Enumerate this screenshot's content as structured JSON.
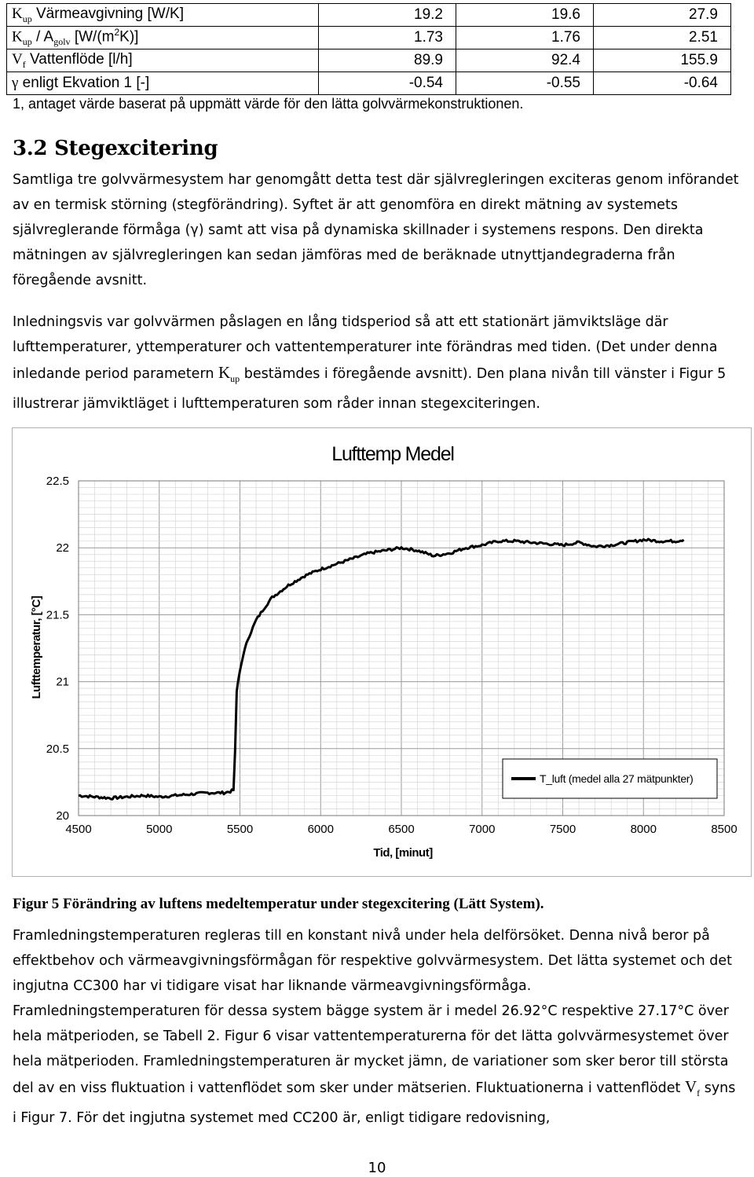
{
  "table": {
    "rows": [
      {
        "label_main": "K",
        "label_sub": "up",
        "label_rest": " Värmeavgivning [W/K]",
        "v1": "19.2",
        "v2": "19.6",
        "v3": "27.9"
      },
      {
        "label_main": "K",
        "label_sub": "up",
        "label_mid": " / A",
        "label_sub2": "golv",
        "label_rest": " [W/(m",
        "label_sup": "2",
        "label_end": "K)]",
        "v1": "1.73",
        "v2": "1.76",
        "v3": "2.51"
      },
      {
        "label_main": "V",
        "label_sub": "f",
        "label_rest": " Vattenflöde [l/h]",
        "v1": "89.9",
        "v2": "92.4",
        "v3": "155.9"
      },
      {
        "label_main": "γ",
        "label_rest": " enligt Ekvation 1 [-]",
        "v1": "-0.54",
        "v2": "-0.55",
        "v3": "-0.64"
      }
    ]
  },
  "note": "1, antaget värde baserat på uppmätt värde för den lätta golvvärmekonstruktionen.",
  "section": {
    "heading": "3.2 Stegexcitering",
    "para1": "Samtliga tre golvvärmesystem har genomgått detta test där självregleringen exciteras genom införandet av en termisk störning (stegförändring). Syftet är att genomföra en direkt mätning av systemets självreglerande förmåga (γ) samt att visa på dynamiska skillnader i systemens respons. Den direkta mätningen av självregleringen kan sedan jämföras med de beräknade utnyttjandegraderna från föregående avsnitt.",
    "para2_a": "Inledningsvis var golvvärmen påslagen en lång tidsperiod så att ett stationärt jämviktsläge där lufttemperaturer, yttemperaturer och vattentemperaturer inte förändras med tiden. (Det under denna inledande period parametern ",
    "para2_k": "K",
    "para2_sub": "up",
    "para2_b": " bestämdes i föregående avsnitt). Den plana nivån till vänster i Figur 5 illustrerar jämviktläget i lufttemperaturen som råder innan stegexciteringen."
  },
  "caption": "Figur 5 Förändring av luftens medeltemperatur under stegexcitering (Lätt System).",
  "body": {
    "para3": "Framledningstemperaturen regleras till en konstant nivå under hela delförsöket. Denna nivå beror på effektbehov och värmeavgivningsförmågan för respektive golvvärmesystem. Det lätta systemet och det ingjutna CC300 har vi tidigare visat har liknande värmeavgivningsförmåga.",
    "para4_a": "Framledningstemperaturen för dessa system bägge system är i medel 26.92°C respektive 27.17°C över hela mätperioden, se Tabell 2. Figur 6 visar vattentemperaturerna för det lätta golvvärmesystemet över hela mätperioden. Framledningstemperaturen är mycket jämn, de variationer som sker beror till största del av en viss fluktuation i vattenflödet som sker under mätserien. Fluktuationerna i vattenflödet ",
    "para4_v": "V",
    "para4_sub": "f",
    "para4_b": " syns i Figur 7. För det ingjutna systemet med CC200 är, enligt tidigare redovisning,"
  },
  "page_number": "10",
  "chart_data": {
    "type": "line",
    "title": "Lufttemp Medel",
    "xlabel": "Tid, [minut]",
    "ylabel": "Lufttemperatur, [°C]",
    "xlim": [
      4500,
      8500
    ],
    "ylim": [
      20,
      22.5
    ],
    "x_ticks": [
      "4500",
      "5000",
      "5500",
      "6000",
      "6500",
      "7000",
      "7500",
      "8000",
      "8500"
    ],
    "y_ticks": [
      "20",
      "20.5",
      "21",
      "21.5",
      "22",
      "22.5"
    ],
    "grid": true,
    "legend_position": "bottom-right",
    "series": [
      {
        "name": "T_luft (medel alla 27 mätpunkter)",
        "color": "#000000",
        "x": [
          4500,
          4600,
          4700,
          4800,
          4900,
          5000,
          5100,
          5200,
          5300,
          5400,
          5440,
          5460,
          5470,
          5480,
          5500,
          5520,
          5550,
          5600,
          5650,
          5700,
          5800,
          5900,
          6000,
          6100,
          6200,
          6300,
          6400,
          6500,
          6600,
          6700,
          6800,
          6900,
          7000,
          7100,
          7200,
          7300,
          7400,
          7500,
          7600,
          7700,
          7800,
          7900,
          8000,
          8100,
          8200,
          8250
        ],
        "y": [
          20.15,
          20.14,
          20.13,
          20.14,
          20.15,
          20.14,
          20.15,
          20.16,
          20.17,
          20.17,
          20.18,
          20.19,
          20.48,
          20.93,
          21.08,
          21.2,
          21.32,
          21.46,
          21.55,
          21.63,
          21.72,
          21.79,
          21.84,
          21.88,
          21.92,
          21.96,
          21.98,
          22.0,
          21.98,
          21.94,
          21.96,
          22.0,
          22.02,
          22.05,
          22.05,
          22.04,
          22.03,
          22.02,
          22.04,
          22.01,
          22.02,
          22.04,
          22.06,
          22.05,
          22.05,
          22.06
        ]
      }
    ]
  }
}
